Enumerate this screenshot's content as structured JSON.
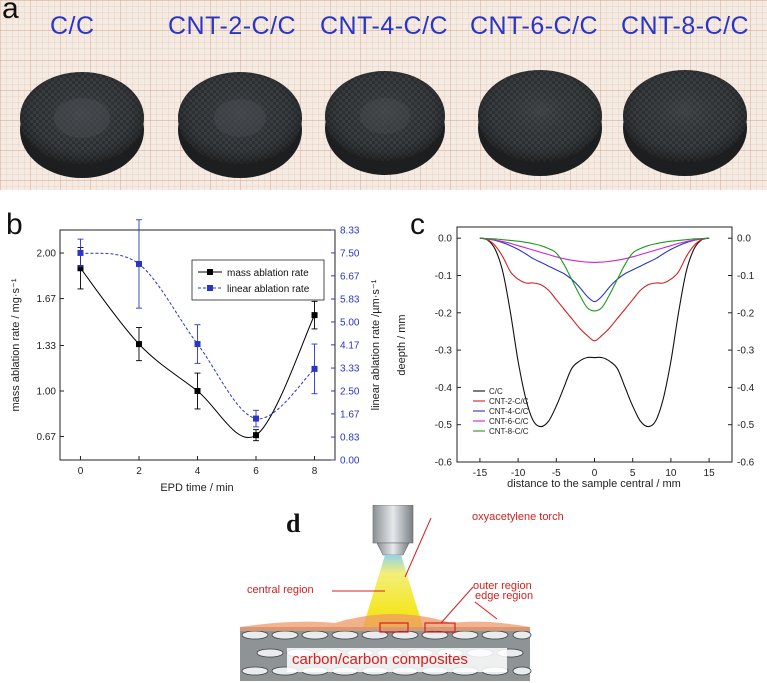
{
  "panel_a": {
    "letter": "a",
    "samples": [
      "C/C",
      "CNT-2-C/C",
      "CNT-4-C/C",
      "CNT-6-C/C",
      "CNT-8-C/C"
    ]
  },
  "chart_data": [
    {
      "type": "line",
      "panel": "b",
      "xlabel": "EPD time / min",
      "ylabel": "mass ablation rate / mg·s⁻¹",
      "ylabel_right": "linear ablation rate /µm·s⁻¹",
      "x": [
        0,
        2,
        4,
        6,
        8
      ],
      "xticks": [
        "0",
        "2",
        "4",
        "6",
        "8"
      ],
      "yticks_left": [
        "0.67",
        "1.00",
        "1.33",
        "1.67",
        "2.00"
      ],
      "yticks_right": [
        "0.00",
        "0.83",
        "1.67",
        "2.50",
        "3.33",
        "4.17",
        "5.00",
        "5.83",
        "6.67",
        "7.50",
        "8.33"
      ],
      "xlim": [
        -0.7,
        8.7
      ],
      "ylim_left": [
        0.5,
        2.167
      ],
      "ylim_right": [
        0,
        8.33
      ],
      "series": [
        {
          "name": "mass ablation rate",
          "axis": "left",
          "color": "#000000",
          "style": "solid",
          "marker": "square",
          "values": [
            1.89,
            1.34,
            1.0,
            0.68,
            1.55
          ],
          "errors": [
            0.15,
            0.12,
            0.13,
            0.04,
            0.1
          ]
        },
        {
          "name": "linear ablation rate",
          "axis": "right",
          "color": "#2a35c8",
          "style": "dashed",
          "marker": "square",
          "values": [
            7.5,
            7.1,
            4.2,
            1.5,
            3.3
          ],
          "errors": [
            0.5,
            1.6,
            0.7,
            0.3,
            0.9
          ]
        }
      ]
    },
    {
      "type": "line",
      "panel": "c",
      "xlabel": "distance to the sample central / mm",
      "ylabel": "deepth / mm",
      "xticks": [
        "-15",
        "-10",
        "-5",
        "0",
        "5",
        "10",
        "15"
      ],
      "yticks": [
        "0.0",
        "-0.1",
        "-0.2",
        "-0.3",
        "-0.4",
        "-0.5",
        "-0.6"
      ],
      "xlim": [
        -18,
        18
      ],
      "ylim": [
        -0.6,
        0.03
      ],
      "series": [
        {
          "name": "C/C",
          "color": "#111111",
          "x": [
            -15,
            -14,
            -13,
            -12,
            -11,
            -10,
            -9,
            -8,
            -7,
            -6,
            -5,
            -4,
            -3,
            -2,
            -1,
            0,
            1,
            2,
            3,
            4,
            5,
            6,
            7,
            8,
            9,
            10,
            11,
            12,
            13,
            14,
            15
          ],
          "y": [
            0,
            -0.005,
            -0.03,
            -0.09,
            -0.2,
            -0.33,
            -0.43,
            -0.49,
            -0.505,
            -0.49,
            -0.45,
            -0.4,
            -0.35,
            -0.33,
            -0.32,
            -0.32,
            -0.32,
            -0.33,
            -0.35,
            -0.4,
            -0.45,
            -0.49,
            -0.505,
            -0.49,
            -0.43,
            -0.33,
            -0.2,
            -0.09,
            -0.03,
            -0.005,
            0
          ]
        },
        {
          "name": "CNT-2-C/C",
          "color": "#d42020",
          "x": [
            -15,
            -14,
            -13,
            -12,
            -11,
            -10,
            -9,
            -8,
            -7,
            -6,
            -5,
            -4,
            -3,
            -2,
            -1,
            0,
            1,
            2,
            3,
            4,
            5,
            6,
            7,
            8,
            9,
            10,
            11,
            12,
            13,
            14,
            15
          ],
          "y": [
            0,
            -0.004,
            -0.02,
            -0.05,
            -0.09,
            -0.11,
            -0.12,
            -0.12,
            -0.125,
            -0.14,
            -0.165,
            -0.19,
            -0.215,
            -0.24,
            -0.26,
            -0.275,
            -0.26,
            -0.24,
            -0.215,
            -0.19,
            -0.165,
            -0.14,
            -0.125,
            -0.12,
            -0.12,
            -0.11,
            -0.09,
            -0.05,
            -0.02,
            -0.004,
            0
          ]
        },
        {
          "name": "CNT-4-C/C",
          "color": "#2a35c8",
          "x": [
            -15,
            -14,
            -13,
            -12,
            -11,
            -10,
            -9,
            -8,
            -7,
            -6,
            -5,
            -4,
            -3,
            -2,
            -1,
            0,
            1,
            2,
            3,
            4,
            5,
            6,
            7,
            8,
            9,
            10,
            11,
            12,
            13,
            14,
            15
          ],
          "y": [
            0,
            -0.002,
            -0.006,
            -0.012,
            -0.02,
            -0.03,
            -0.042,
            -0.055,
            -0.065,
            -0.075,
            -0.085,
            -0.095,
            -0.11,
            -0.13,
            -0.155,
            -0.17,
            -0.155,
            -0.13,
            -0.11,
            -0.095,
            -0.085,
            -0.075,
            -0.065,
            -0.055,
            -0.042,
            -0.03,
            -0.02,
            -0.012,
            -0.006,
            -0.002,
            0
          ]
        },
        {
          "name": "CNT-6-C/C",
          "color": "#d020d0",
          "x": [
            -15,
            -14,
            -13,
            -12,
            -11,
            -10,
            -9,
            -8,
            -7,
            -6,
            -5,
            -4,
            -3,
            -2,
            -1,
            0,
            1,
            2,
            3,
            4,
            5,
            6,
            7,
            8,
            9,
            10,
            11,
            12,
            13,
            14,
            15
          ],
          "y": [
            0,
            -0.002,
            -0.005,
            -0.009,
            -0.014,
            -0.02,
            -0.026,
            -0.032,
            -0.038,
            -0.044,
            -0.05,
            -0.055,
            -0.059,
            -0.062,
            -0.064,
            -0.065,
            -0.064,
            -0.062,
            -0.059,
            -0.055,
            -0.05,
            -0.044,
            -0.038,
            -0.032,
            -0.026,
            -0.02,
            -0.014,
            -0.009,
            -0.005,
            -0.002,
            0
          ]
        },
        {
          "name": "CNT-8-C/C",
          "color": "#1e9a1e",
          "x": [
            -15,
            -14,
            -13,
            -12,
            -11,
            -10,
            -9,
            -8,
            -7,
            -6,
            -5,
            -4,
            -3,
            -2,
            -1,
            0,
            1,
            2,
            3,
            4,
            5,
            6,
            7,
            8,
            9,
            10,
            11,
            12,
            13,
            14,
            15
          ],
          "y": [
            0,
            -0.001,
            -0.002,
            -0.004,
            -0.006,
            -0.008,
            -0.011,
            -0.015,
            -0.02,
            -0.028,
            -0.04,
            -0.07,
            -0.11,
            -0.15,
            -0.185,
            -0.195,
            -0.185,
            -0.15,
            -0.11,
            -0.07,
            -0.04,
            -0.028,
            -0.02,
            -0.015,
            -0.011,
            -0.008,
            -0.006,
            -0.004,
            -0.002,
            -0.001,
            0
          ]
        }
      ]
    }
  ],
  "panel_d": {
    "letter": "d",
    "labels": {
      "torch": "oxyacetylene torch",
      "central": "central region",
      "outer": "outer region",
      "edge": "edge region",
      "composite": "carbon/carbon composites"
    }
  },
  "colors": {
    "label_blue": "#2a35c8",
    "annotation_red": "#d42020"
  }
}
